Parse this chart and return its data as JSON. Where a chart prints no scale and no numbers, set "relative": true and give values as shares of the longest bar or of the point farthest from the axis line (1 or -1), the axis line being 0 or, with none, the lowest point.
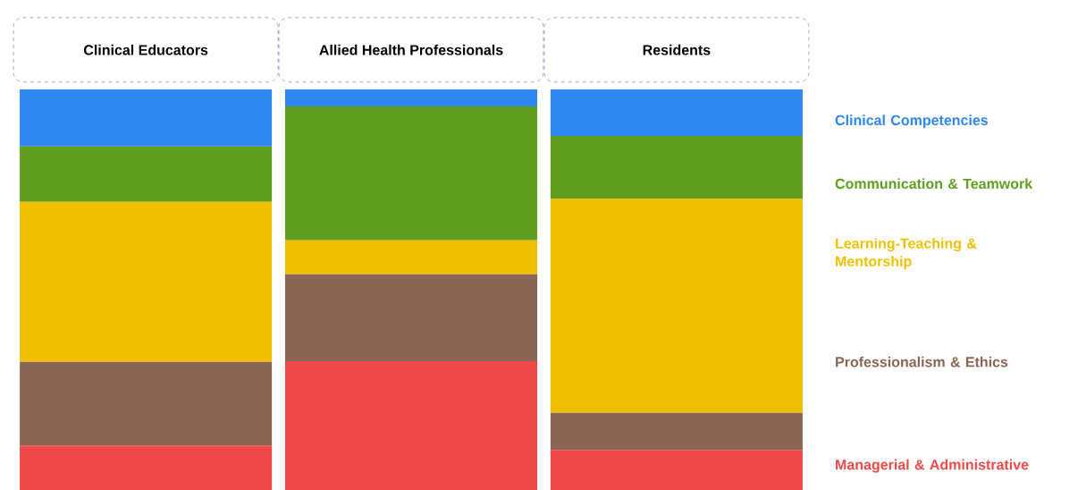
{
  "chart_data": {
    "type": "bar",
    "stacked": true,
    "relative": true,
    "legend": "right",
    "categories": [
      "Clinical Educators",
      "Allied Health Professionals",
      "Residents"
    ],
    "series": [
      {
        "name": "Managerial & Administrative",
        "color": "#ef4a4a",
        "values": [
          0.1108,
          0.3217,
          0.1
        ]
      },
      {
        "name": "Professionalism & Ethics",
        "color": "#8b6553",
        "values": [
          0.2092,
          0.2167,
          0.0925
        ]
      },
      {
        "name": "Learning-Teaching & Mentorship",
        "color": "#f0c000",
        "values": [
          0.3992,
          0.085,
          0.5342
        ]
      },
      {
        "name": "Communication & Teamwork",
        "color": "#5f9e1e",
        "values": [
          0.1383,
          0.3341,
          0.1575
        ]
      },
      {
        "name": "Clinical Competencies",
        "color": "#2e86f0",
        "values": [
          0.1425,
          0.0425,
          0.1158
        ]
      }
    ]
  }
}
